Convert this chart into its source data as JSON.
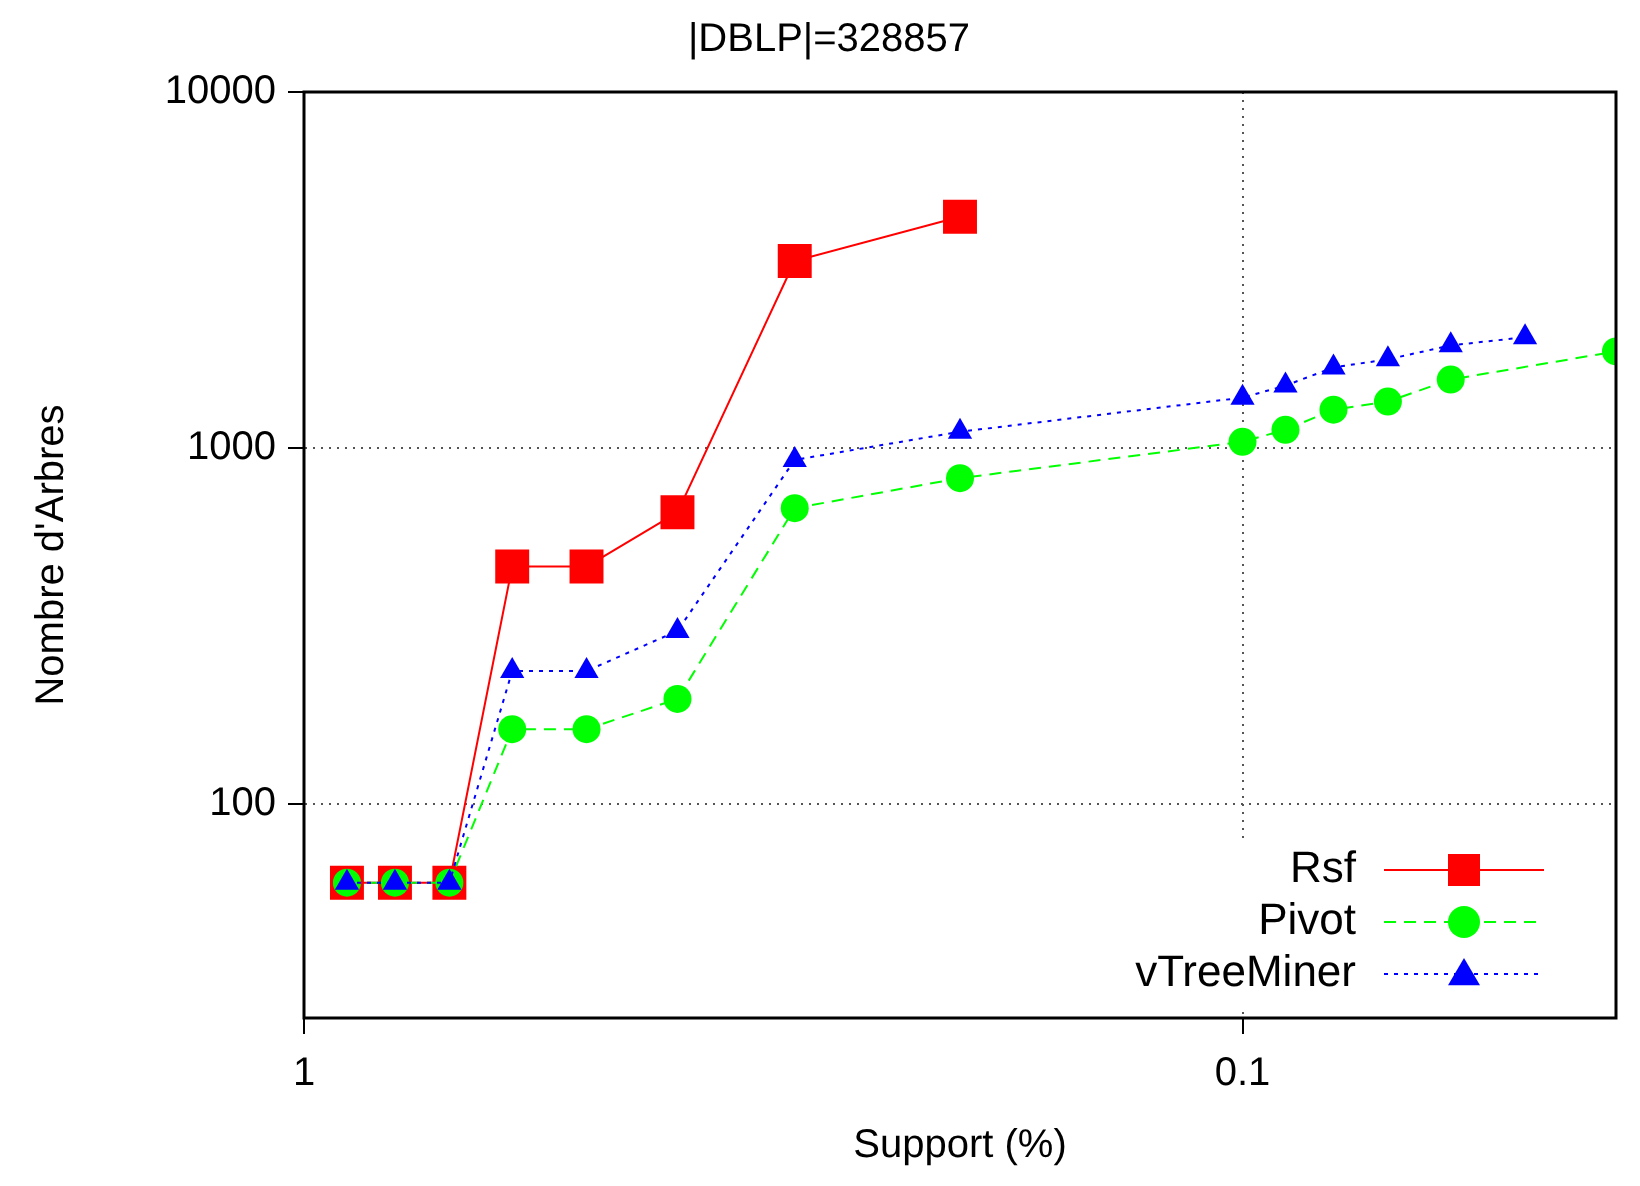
{
  "chart_data": {
    "type": "line",
    "title": "|DBLP|=328857",
    "xlabel": "Support (%)",
    "ylabel": "Nombre d'Arbres",
    "log": "xy",
    "xlim": [
      1,
      0.04
    ],
    "xticks": [
      1,
      0.1
    ],
    "ylim": [
      25,
      10000
    ],
    "yticks": [
      100,
      1000,
      10000
    ],
    "grid": true,
    "legend": "bottom right",
    "series": [
      {
        "name": "Rsf",
        "color": "#ff0000",
        "marker": "square",
        "line_style": "solid",
        "x": [
          0.9,
          0.8,
          0.7,
          0.6,
          0.5,
          0.4,
          0.3,
          0.2
        ],
        "values": [
          60,
          60,
          60,
          464,
          464,
          659,
          3350,
          4460
        ]
      },
      {
        "name": "Pivot",
        "color": "#00ff00",
        "marker": "circle",
        "line_style": "dashed",
        "x": [
          0.9,
          0.8,
          0.7,
          0.6,
          0.5,
          0.4,
          0.3,
          0.2,
          0.1,
          0.09,
          0.08,
          0.07,
          0.06,
          0.04
        ],
        "values": [
          60,
          60,
          60,
          162,
          162,
          197,
          677,
          822,
          1040,
          1124,
          1280,
          1349,
          1556,
          1866
        ]
      },
      {
        "name": "vTreeMiner",
        "color": "#0000ff",
        "marker": "triangle",
        "line_style": "dotted",
        "x": [
          0.9,
          0.8,
          0.7,
          0.6,
          0.5,
          0.4,
          0.3,
          0.2,
          0.1,
          0.09,
          0.08,
          0.07,
          0.06,
          0.05
        ],
        "values": [
          60,
          60,
          60,
          236,
          236,
          306,
          925,
          1110,
          1384,
          1496,
          1683,
          1773,
          1941,
          2046
        ]
      }
    ]
  }
}
